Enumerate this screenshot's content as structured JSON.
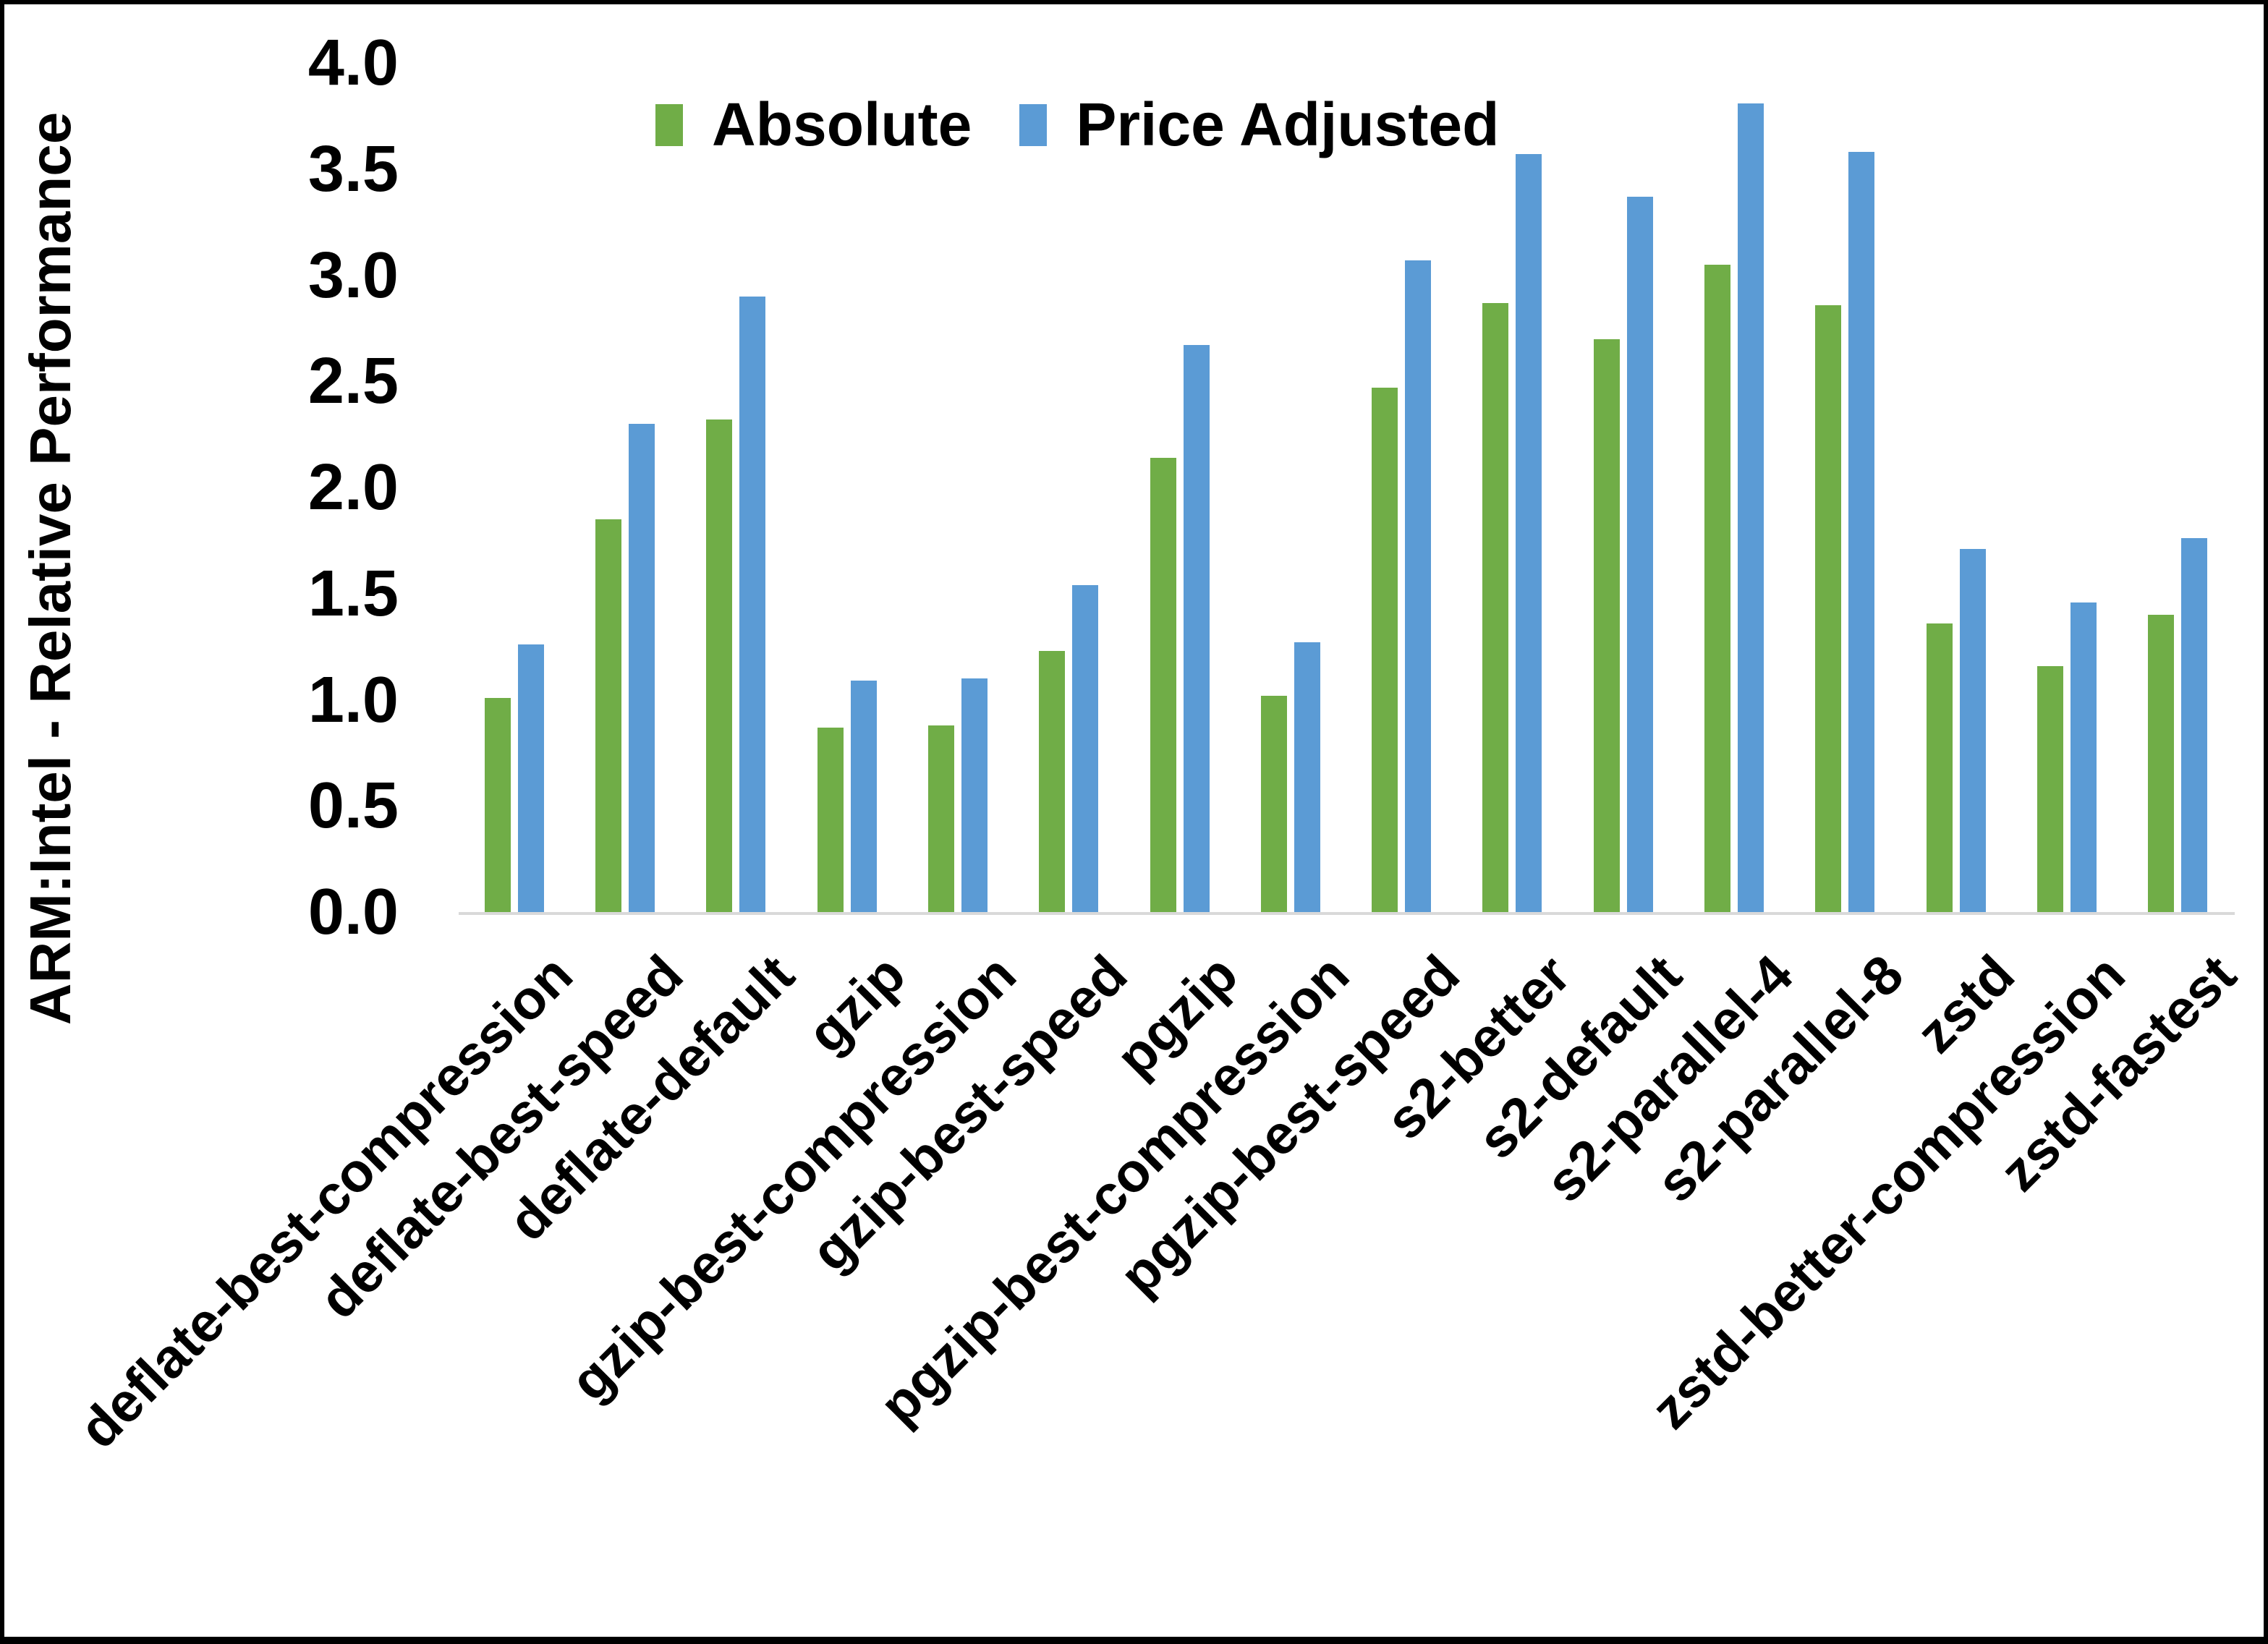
{
  "chart_data": {
    "type": "bar",
    "title": "",
    "xlabel": "",
    "ylabel": "ARM:Intel - Relative Performance",
    "ylim": [
      0.0,
      4.0
    ],
    "ytick_interval": 0.5,
    "ytick_labels": [
      "0.0",
      "0.5",
      "1.0",
      "1.5",
      "2.0",
      "2.5",
      "3.0",
      "3.5",
      "4.0"
    ],
    "grid": false,
    "legend_position": "top-center",
    "categories": [
      "deflate-best-compression",
      "deflate-best-speed",
      "deflate-default",
      "gzip",
      "gzip-best-compression",
      "gzip-best-speed",
      "pgzip",
      "pgzip-best-compression",
      "pgzip-best-speed",
      "s2-better",
      "s2-default",
      "s2-parallel-4",
      "s2-parallel-8",
      "zstd",
      "zstd-better-compression",
      "zstd-fastest"
    ],
    "series": [
      {
        "name": "Absolute",
        "color": "#70AD47",
        "values": [
          1.01,
          1.85,
          2.32,
          0.87,
          0.88,
          1.23,
          2.14,
          1.02,
          2.47,
          2.87,
          2.7,
          3.05,
          2.86,
          1.36,
          1.16,
          1.4
        ]
      },
      {
        "name": "Price Adjusted",
        "color": "#5B9BD5",
        "values": [
          1.26,
          2.3,
          2.9,
          1.09,
          1.1,
          1.54,
          2.67,
          1.27,
          3.07,
          3.57,
          3.37,
          3.81,
          3.58,
          1.71,
          1.46,
          1.76
        ]
      }
    ],
    "axis_line_color": "#D9D9D9",
    "text_color": "#000000",
    "background_color": "#FFFFFF",
    "border_color": "#000000"
  }
}
